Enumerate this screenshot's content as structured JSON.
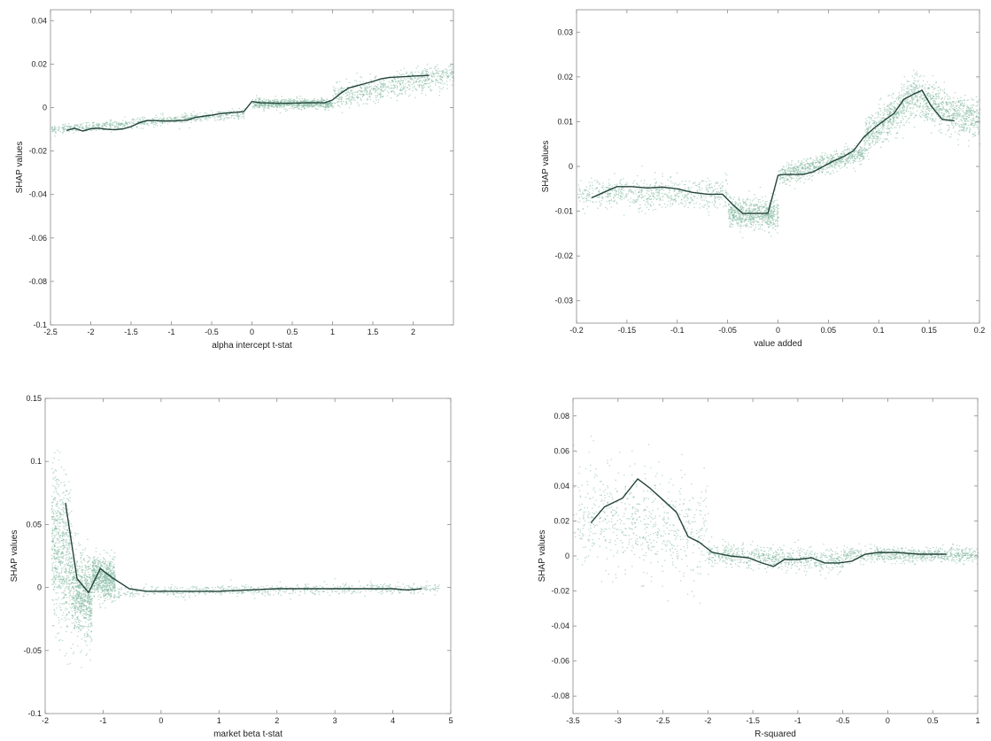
{
  "colors": {
    "scatter": "#7fb79e",
    "line": "#23433a",
    "frame": "#8a8a8a",
    "text": "#222222"
  },
  "chart_data": [
    {
      "type": "scatter",
      "xlabel": "alpha intercept t-stat",
      "ylabel": "SHAP values",
      "xlim": [
        -2.5,
        2.5
      ],
      "ylim": [
        -0.1,
        0.045
      ],
      "xticks": [
        -2.5,
        -2,
        -1.5,
        -1,
        -0.5,
        0,
        0.5,
        1,
        1.5,
        2
      ],
      "yticks": [
        -0.1,
        -0.08,
        -0.06,
        -0.04,
        -0.02,
        0,
        0.02,
        0.04
      ],
      "xtick_labels": [
        "-2.5",
        "-2",
        "-1.5",
        "-1",
        "-0.5",
        "0",
        "0.5",
        "1",
        "1.5",
        "2"
      ],
      "ytick_labels": [
        "-0.1",
        "-0.08",
        "-0.06",
        "-0.04",
        "-0.02",
        "0",
        "0.02",
        "0.04"
      ],
      "grid": false,
      "trend_line": {
        "x": [
          -2.3,
          -2.2,
          -2.1,
          -2.0,
          -1.9,
          -1.8,
          -1.7,
          -1.6,
          -1.5,
          -1.4,
          -1.3,
          -1.2,
          -1.1,
          -1.0,
          -0.9,
          -0.8,
          -0.7,
          -0.6,
          -0.5,
          -0.4,
          -0.3,
          -0.2,
          -0.1,
          0.0,
          0.1,
          0.3,
          0.5,
          0.7,
          0.9,
          1.0,
          1.1,
          1.2,
          1.3,
          1.4,
          1.5,
          1.6,
          1.7,
          1.8,
          1.9,
          2.0,
          2.1,
          2.2
        ],
        "y": [
          -0.0105,
          -0.0095,
          -0.0108,
          -0.0098,
          -0.0095,
          -0.01,
          -0.0102,
          -0.0098,
          -0.0088,
          -0.007,
          -0.006,
          -0.006,
          -0.0062,
          -0.0062,
          -0.006,
          -0.0058,
          -0.0045,
          -0.004,
          -0.0035,
          -0.0028,
          -0.0025,
          -0.0022,
          -0.0018,
          0.0028,
          0.0022,
          0.002,
          0.002,
          0.0022,
          0.0022,
          0.0035,
          0.0065,
          0.009,
          0.01,
          0.011,
          0.012,
          0.0132,
          0.0138,
          0.014,
          0.0142,
          0.0145,
          0.0146,
          0.0148
        ]
      },
      "scatter_bands": [
        {
          "x": [
            -2.5,
            -0.1
          ],
          "center": [
            -0.01,
            -0.0025
          ],
          "spread": 0.002
        },
        {
          "x": [
            0.0,
            1.0
          ],
          "center": [
            0.002,
            0.002
          ],
          "spread": 0.002
        },
        {
          "x": [
            1.0,
            2.5
          ],
          "center": [
            0.005,
            0.016
          ],
          "spread": 0.005
        }
      ]
    },
    {
      "type": "scatter",
      "xlabel": "value added",
      "ylabel": "SHAP values",
      "xlim": [
        -0.2,
        0.2
      ],
      "ylim": [
        -0.035,
        0.035
      ],
      "xticks": [
        -0.2,
        -0.15,
        -0.1,
        -0.05,
        0,
        0.05,
        0.1,
        0.15,
        0.2
      ],
      "yticks": [
        -0.03,
        -0.02,
        -0.01,
        0,
        0.01,
        0.02,
        0.03
      ],
      "xtick_labels": [
        "-0.2",
        "-0.15",
        "-0.1",
        "-0.05",
        "0",
        "0.05",
        "0.1",
        "0.15",
        "0.2"
      ],
      "ytick_labels": [
        "-0.03",
        "-0.02",
        "-0.01",
        "0",
        "0.01",
        "0.02",
        "0.03"
      ],
      "grid": false,
      "trend_line": {
        "x": [
          -0.185,
          -0.175,
          -0.16,
          -0.145,
          -0.13,
          -0.115,
          -0.1,
          -0.085,
          -0.07,
          -0.055,
          -0.045,
          -0.035,
          -0.025,
          -0.015,
          -0.01,
          0.0,
          0.005,
          0.015,
          0.025,
          0.035,
          0.045,
          0.055,
          0.065,
          0.075,
          0.085,
          0.095,
          0.105,
          0.115,
          0.125,
          0.135,
          0.143,
          0.152,
          0.163,
          0.175
        ],
        "y": [
          -0.007,
          -0.006,
          -0.0045,
          -0.0045,
          -0.0048,
          -0.0046,
          -0.005,
          -0.0058,
          -0.0062,
          -0.0062,
          -0.0085,
          -0.0105,
          -0.0105,
          -0.0105,
          -0.0105,
          -0.002,
          -0.0018,
          -0.0018,
          -0.0018,
          -0.0012,
          0.0,
          0.0012,
          0.0022,
          0.0035,
          0.0065,
          0.0085,
          0.0102,
          0.0118,
          0.015,
          0.0162,
          0.017,
          0.0135,
          0.0105,
          0.0102
        ]
      },
      "scatter_bands": [
        {
          "x": [
            -0.2,
            -0.05
          ],
          "center": [
            -0.006,
            -0.006
          ],
          "spread": 0.003
        },
        {
          "x": [
            -0.05,
            0.0
          ],
          "center": [
            -0.0105,
            -0.0105
          ],
          "spread": 0.003
        },
        {
          "x": [
            0.0,
            0.085
          ],
          "center": [
            -0.002,
            0.003
          ],
          "spread": 0.002
        },
        {
          "x": [
            0.085,
            0.14
          ],
          "center": [
            0.006,
            0.017
          ],
          "spread": 0.004
        },
        {
          "x": [
            0.14,
            0.2
          ],
          "center": [
            0.015,
            0.01
          ],
          "spread": 0.004
        }
      ]
    },
    {
      "type": "scatter",
      "xlabel": "market beta t-stat",
      "ylabel": "SHAP values",
      "xlim": [
        -2,
        5
      ],
      "ylim": [
        -0.1,
        0.15
      ],
      "xticks": [
        -2,
        -1,
        0,
        1,
        2,
        3,
        4,
        5
      ],
      "yticks": [
        -0.1,
        -0.05,
        0,
        0.05,
        0.1,
        0.15
      ],
      "xtick_labels": [
        "-2",
        "-1",
        "0",
        "1",
        "2",
        "3",
        "4",
        "5"
      ],
      "ytick_labels": [
        "-0.1",
        "-0.05",
        "0",
        "0.05",
        "0.1",
        "0.15"
      ],
      "grid": false,
      "trend_line": {
        "x": [
          -1.65,
          -1.45,
          -1.25,
          -1.05,
          -0.85,
          -0.55,
          -0.25,
          0.0,
          0.5,
          1.0,
          1.5,
          2.0,
          2.5,
          3.0,
          3.5,
          4.0,
          4.25,
          4.5
        ],
        "y": [
          0.067,
          0.007,
          -0.004,
          0.015,
          0.008,
          -0.001,
          -0.003,
          -0.003,
          -0.003,
          -0.003,
          -0.002,
          -0.001,
          -0.001,
          -0.001,
          -0.001,
          -0.001,
          -0.002,
          -0.001
        ]
      },
      "scatter_bands": [
        {
          "x": [
            -1.9,
            -1.55
          ],
          "center": [
            0.04,
            0.02
          ],
          "spread": 0.05
        },
        {
          "x": [
            -1.55,
            -1.2
          ],
          "center": [
            0.0,
            -0.01
          ],
          "spread": 0.03
        },
        {
          "x": [
            -1.2,
            -0.8
          ],
          "center": [
            0.01,
            0.005
          ],
          "spread": 0.015
        },
        {
          "x": [
            -0.8,
            4.8
          ],
          "center": [
            -0.003,
            0.0
          ],
          "spread": 0.004
        }
      ]
    },
    {
      "type": "scatter",
      "xlabel": "R-squared",
      "ylabel": "SHAP values",
      "xlim": [
        -3.5,
        1
      ],
      "ylim": [
        -0.09,
        0.09
      ],
      "xticks": [
        -3.5,
        -3,
        -2.5,
        -2,
        -1.5,
        -1,
        -0.5,
        0,
        0.5,
        1
      ],
      "yticks": [
        -0.08,
        -0.06,
        -0.04,
        -0.02,
        0,
        0.02,
        0.04,
        0.06,
        0.08
      ],
      "xtick_labels": [
        "-3.5",
        "-3",
        "-2.5",
        "-2",
        "-1.5",
        "-1",
        "-0.5",
        "0",
        "0.5",
        "1"
      ],
      "ytick_labels": [
        "-0.08",
        "-0.06",
        "-0.04",
        "-0.02",
        "0",
        "0.02",
        "0.04",
        "0.06",
        "0.08"
      ],
      "grid": false,
      "trend_line": {
        "x": [
          -3.3,
          -3.15,
          -2.95,
          -2.78,
          -2.65,
          -2.5,
          -2.35,
          -2.22,
          -2.1,
          -1.95,
          -1.75,
          -1.55,
          -1.4,
          -1.27,
          -1.15,
          -1.0,
          -0.85,
          -0.7,
          -0.55,
          -0.4,
          -0.25,
          -0.1,
          0.1,
          0.35,
          0.65
        ],
        "y": [
          0.019,
          0.028,
          0.033,
          0.044,
          0.039,
          0.032,
          0.025,
          0.011,
          0.008,
          0.002,
          0.0,
          -0.001,
          -0.004,
          -0.006,
          -0.002,
          -0.002,
          -0.001,
          -0.004,
          -0.004,
          -0.003,
          0.001,
          0.002,
          0.002,
          0.001,
          0.001
        ]
      },
      "scatter_bands": [
        {
          "x": [
            -3.5,
            -2.0
          ],
          "center": [
            0.025,
            0.012
          ],
          "spread": 0.025
        },
        {
          "x": [
            -2.0,
            -0.5
          ],
          "center": [
            0.002,
            -0.003
          ],
          "spread": 0.006
        },
        {
          "x": [
            -0.5,
            1.0
          ],
          "center": [
            0.001,
            0.001
          ],
          "spread": 0.004
        }
      ]
    }
  ]
}
